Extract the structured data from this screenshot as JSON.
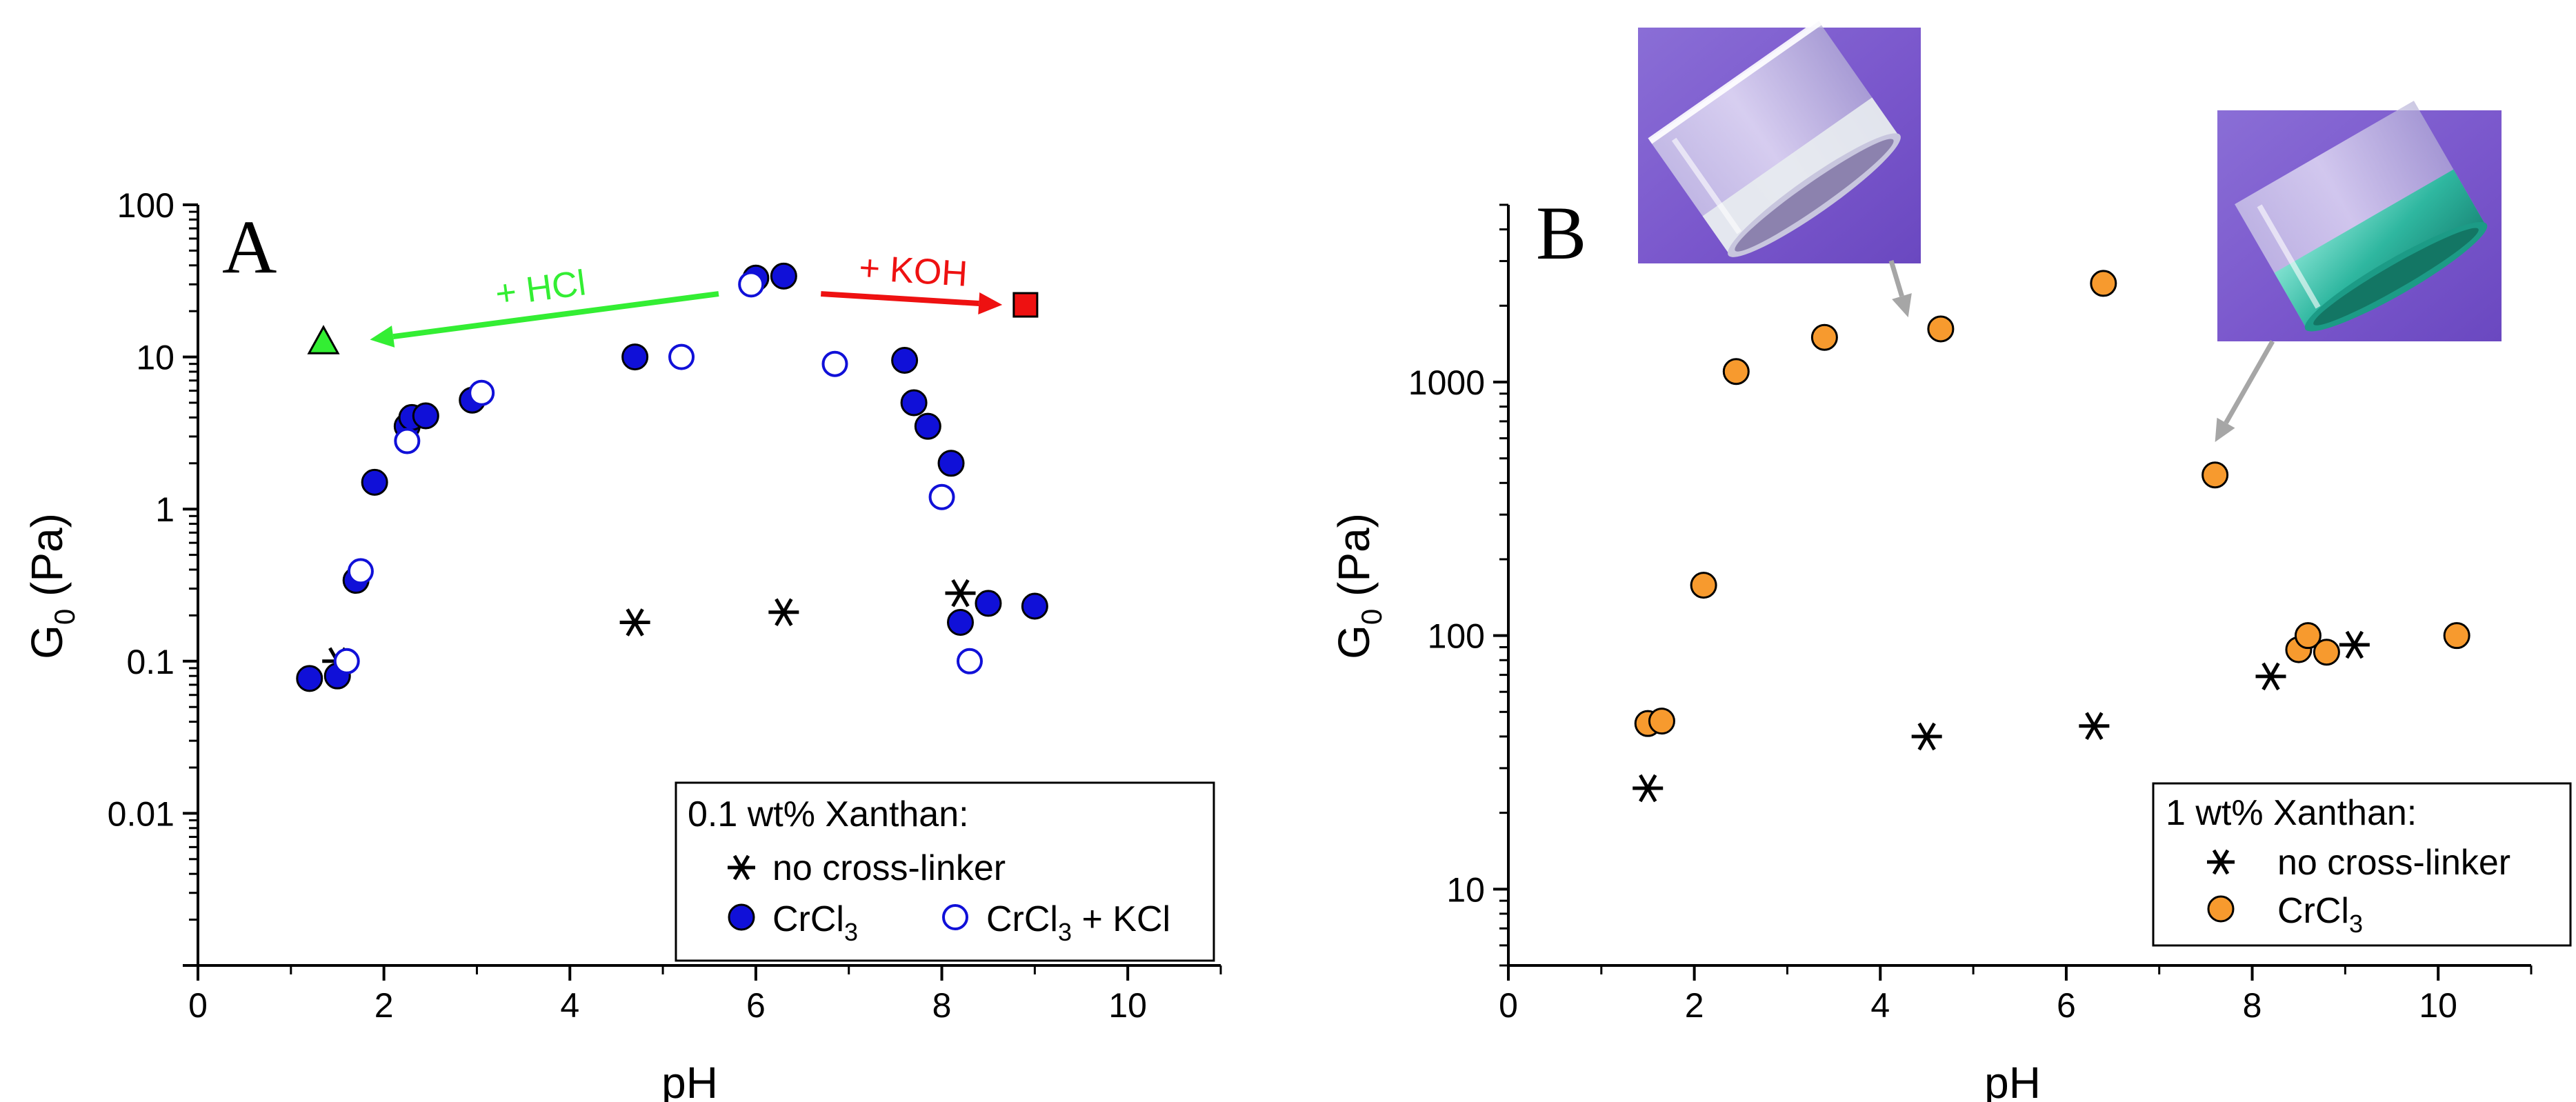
{
  "chart_data": [
    {
      "type": "scatter",
      "panel_label": "A",
      "xlabel": "pH",
      "ylabel_main": "G",
      "ylabel_sub": "0",
      "ylabel_unit": "(Pa)",
      "xlim": [
        0,
        11
      ],
      "ylim": [
        0.001,
        100
      ],
      "yscale": "log",
      "xticks": [
        "0",
        "2",
        "4",
        "6",
        "8",
        "10"
      ],
      "yticks": [
        "0.01",
        "0.1",
        "1",
        "10",
        "100"
      ],
      "legend": {
        "title": "0.1 wt% Xanthan:",
        "entries": [
          {
            "label": "no cross-linker"
          },
          {
            "label_main": "CrCl",
            "label_sub": "3"
          },
          {
            "label_main": "CrCl",
            "label_sub": "3",
            "label_tail": " + KCl"
          }
        ],
        "position": "bottom-right"
      },
      "series": [
        {
          "name": "no cross-linker",
          "marker": "asterisk",
          "color": "#000000",
          "points": [
            [
              1.5,
              0.1
            ],
            [
              4.7,
              0.18
            ],
            [
              6.3,
              0.21
            ],
            [
              8.2,
              0.28
            ]
          ]
        },
        {
          "name": "CrCl3",
          "marker": "filled-circle",
          "color": "#1010d8",
          "points": [
            [
              1.2,
              0.077
            ],
            [
              1.5,
              0.08
            ],
            [
              1.7,
              0.34
            ],
            [
              1.9,
              1.5
            ],
            [
              2.25,
              3.5
            ],
            [
              2.3,
              4.0
            ],
            [
              2.45,
              4.1
            ],
            [
              2.95,
              5.2
            ],
            [
              4.7,
              10
            ],
            [
              6.0,
              33
            ],
            [
              6.3,
              34
            ],
            [
              7.6,
              9.5
            ],
            [
              7.7,
              5.0
            ],
            [
              7.85,
              3.5
            ],
            [
              8.1,
              2.0
            ],
            [
              8.2,
              0.18
            ],
            [
              8.5,
              0.24
            ],
            [
              9.0,
              0.23
            ]
          ]
        },
        {
          "name": "CrCl3 + KCl",
          "marker": "open-circle",
          "color": "#1010d8",
          "points": [
            [
              1.6,
              0.1
            ],
            [
              1.75,
              0.39
            ],
            [
              2.25,
              2.8
            ],
            [
              3.05,
              5.8
            ],
            [
              5.2,
              10
            ],
            [
              5.95,
              30
            ],
            [
              6.85,
              9.0
            ],
            [
              8.0,
              1.2
            ],
            [
              8.3,
              0.1
            ]
          ]
        },
        {
          "name": "+ HCl",
          "marker": "triangle",
          "color": "#33ee33",
          "points": [
            [
              1.35,
              12.5
            ]
          ]
        },
        {
          "name": "+ KOH",
          "marker": "square",
          "color": "#ee1111",
          "points": [
            [
              8.9,
              22
            ]
          ]
        }
      ],
      "annotations": [
        {
          "text": "+ HCl",
          "color": "#33ee33",
          "from": [
            5.6,
            26
          ],
          "to": [
            1.85,
            13
          ]
        },
        {
          "text": "+ KOH",
          "color": "#ee1111",
          "from": [
            6.7,
            26
          ],
          "to": [
            8.65,
            22
          ]
        }
      ]
    },
    {
      "type": "scatter",
      "panel_label": "B",
      "xlabel": "pH",
      "ylabel_main": "G",
      "ylabel_sub": "0",
      "ylabel_unit": "(Pa)",
      "xlim": [
        0,
        11
      ],
      "ylim": [
        5,
        5000
      ],
      "yscale": "log",
      "xticks": [
        "0",
        "2",
        "4",
        "6",
        "8",
        "10"
      ],
      "yticks": [
        "10",
        "100",
        "1000"
      ],
      "legend": {
        "title": "1 wt% Xanthan:",
        "entries": [
          {
            "label": "no cross-linker"
          },
          {
            "label_main": "CrCl",
            "label_sub": "3"
          }
        ],
        "position": "bottom-right"
      },
      "series": [
        {
          "name": "no cross-linker",
          "marker": "asterisk",
          "color": "#000000",
          "points": [
            [
              1.5,
              25
            ],
            [
              4.5,
              40
            ],
            [
              6.3,
              44
            ],
            [
              8.2,
              69
            ],
            [
              9.1,
              92
            ]
          ]
        },
        {
          "name": "CrCl3",
          "marker": "filled-circle",
          "color": "#f79a2e",
          "points": [
            [
              1.5,
              45
            ],
            [
              1.65,
              46
            ],
            [
              2.1,
              158
            ],
            [
              2.45,
              1100
            ],
            [
              3.4,
              1500
            ],
            [
              4.65,
              1620
            ],
            [
              6.4,
              2450
            ],
            [
              7.6,
              430
            ],
            [
              8.5,
              88
            ],
            [
              8.6,
              100
            ],
            [
              8.8,
              86
            ],
            [
              10.2,
              100
            ]
          ]
        }
      ],
      "insets": [
        {
          "name": "clear-vial-photo",
          "arrow_to": [
            4.3,
            1800
          ]
        },
        {
          "name": "green-gel-vial-photo",
          "arrow_to": [
            7.6,
            580
          ]
        }
      ]
    }
  ]
}
